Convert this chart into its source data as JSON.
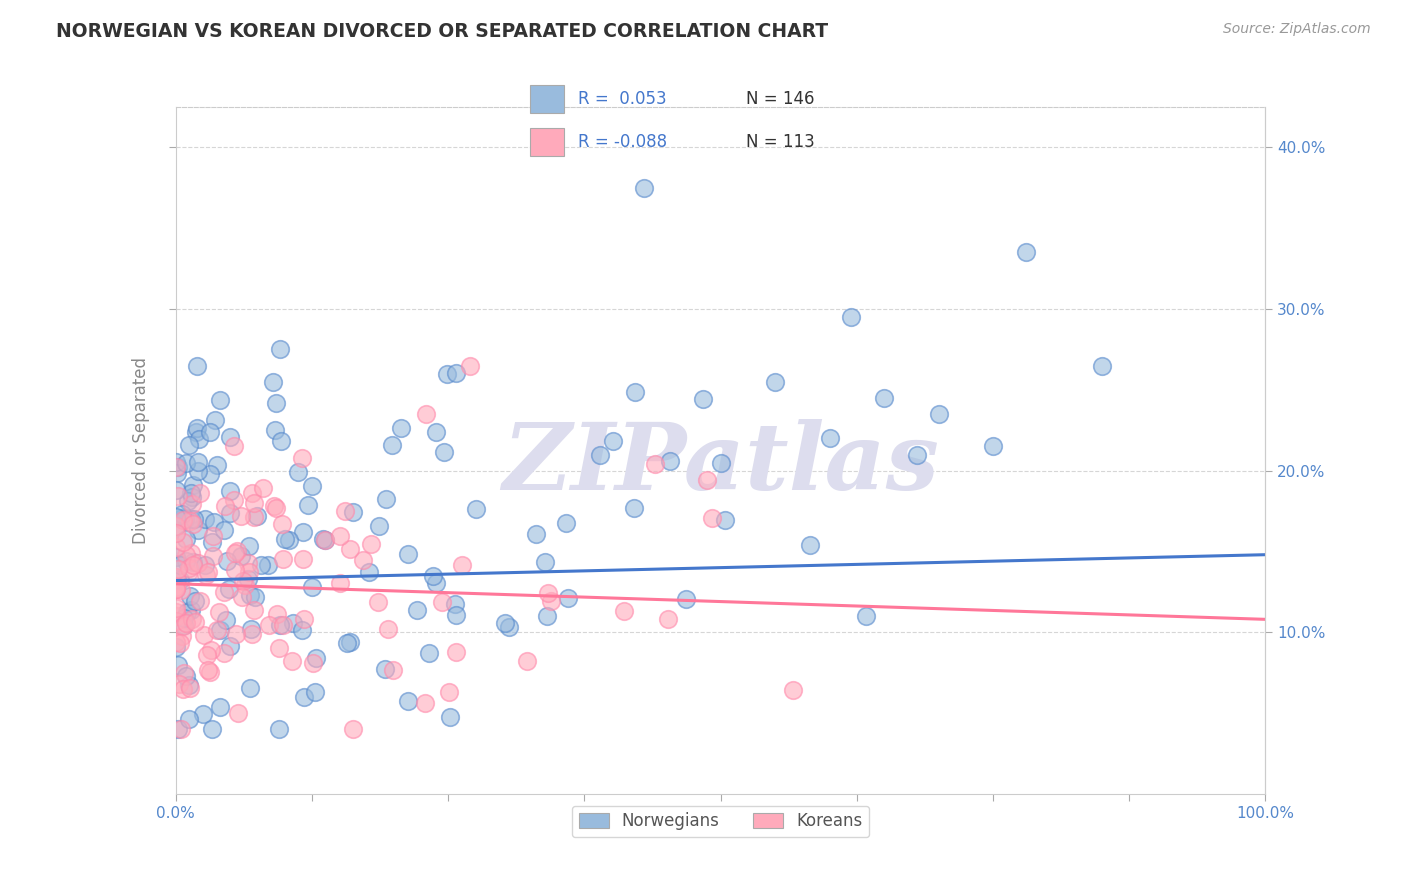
{
  "title": "NORWEGIAN VS KOREAN DIVORCED OR SEPARATED CORRELATION CHART",
  "source": "Source: ZipAtlas.com",
  "ylabel": "Divorced or Separated",
  "legend_labels": [
    "Norwegians",
    "Koreans"
  ],
  "blue_color": "#99BBDD",
  "pink_color": "#FFAABB",
  "blue_line_color": "#4477CC",
  "pink_line_color": "#FF7799",
  "blue_marker_edge": "#5588CC",
  "pink_marker_edge": "#FF88AA",
  "title_color": "#333333",
  "source_color": "#999999",
  "tick_color": "#5588CC",
  "background_color": "#FFFFFF",
  "xlim": [
    0.0,
    1.0
  ],
  "ylim": [
    0.0,
    0.425
  ],
  "yticks": [
    0.1,
    0.2,
    0.3,
    0.4
  ],
  "xtick_labels_show": [
    "0.0%",
    "100.0%"
  ],
  "blue_R": 0.053,
  "blue_N": 146,
  "pink_R": -0.088,
  "pink_N": 113,
  "blue_line_y0": 0.132,
  "blue_line_y1": 0.148,
  "pink_line_y0": 0.13,
  "pink_line_y1": 0.108,
  "watermark_text": "ZIPatlas",
  "watermark_color": "#DDDDEE",
  "grid_color": "#CCCCCC",
  "legend_r1": "R =  0.053",
  "legend_r2": "R = -0.088",
  "legend_n1": "N = 146",
  "legend_n2": "N = 113"
}
